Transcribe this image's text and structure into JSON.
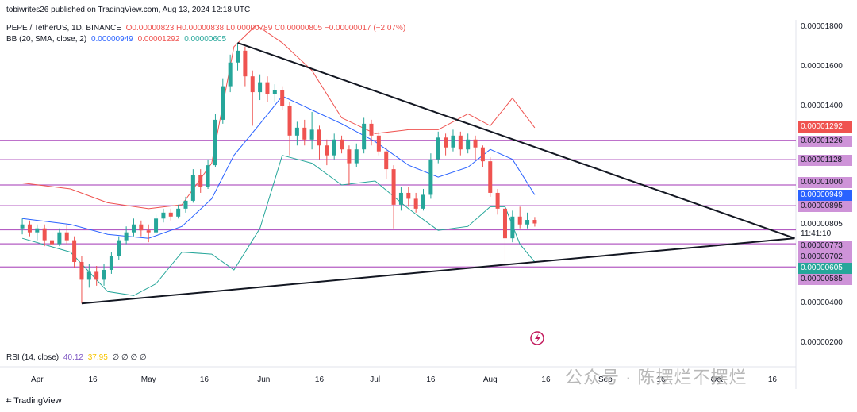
{
  "publisher_line": "tobiwrites26 published on TradingView.com, Aug 13, 2024 12:18 UTC",
  "symbol_line": {
    "symbol": "PEPE / TetherUS, 1D, BINANCE",
    "ohlc": "O0.00000823 H0.00000838 L0.00000789 C0.00000805 −0.00000017 (−2.07%)"
  },
  "bb_line": {
    "label": "BB (20, SMA, close, 2)",
    "basis": "0.00000949",
    "upper": "0.00001292",
    "lower": "0.00000605"
  },
  "rsi_line": {
    "label": "RSI (14, close)",
    "v1": "40.12",
    "v2": "37.95",
    "rest": "∅ ∅ ∅ ∅"
  },
  "footer": "TradingView",
  "watermark": "公众号 · 陈摆烂不摆烂",
  "colors": {
    "up": "#26a69a",
    "down": "#ef5350",
    "bb_upper": "#ef5350",
    "bb_basis": "#2962ff",
    "bb_lower": "#26a69a",
    "hline": "#9c27b0",
    "trendline": "#131722"
  },
  "chart_data": {
    "type": "candlestick",
    "title": "PEPE / TetherUS, 1D, BINANCE",
    "y_ticks": [
      "0.00001800",
      "0.00001600",
      "0.00001400",
      "0.00000400",
      "0.00000200"
    ],
    "x_ticks": [
      "Apr",
      "16",
      "May",
      "16",
      "Jun",
      "16",
      "Jul",
      "16",
      "Aug",
      "16",
      "Sep",
      "16",
      "Oct",
      "16"
    ],
    "price_labels": [
      {
        "text": "0.00001292",
        "value": 1.292e-05,
        "style": "red"
      },
      {
        "text": "0.00001226",
        "value": 1.226e-05,
        "style": "hline"
      },
      {
        "text": "0.00001128",
        "value": 1.128e-05,
        "style": "hline"
      },
      {
        "text": "0.00001000",
        "value": 1e-05,
        "style": "hline"
      },
      {
        "text": "0.00000949",
        "value": 9.49e-06,
        "style": "blue"
      },
      {
        "text": "0.00000895",
        "value": 8.95e-06,
        "style": "hline"
      },
      {
        "text": "0.00000805",
        "value": 8.05e-06,
        "style": "plain"
      },
      {
        "text": "11:41:10",
        "value": 7.85e-06,
        "style": "plain"
      },
      {
        "text": "0.00000773",
        "value": 7.73e-06,
        "style": "hline"
      },
      {
        "text": "0.00000702",
        "value": 7.02e-06,
        "style": "hline"
      },
      {
        "text": "0.00000605",
        "value": 6.05e-06,
        "style": "green"
      },
      {
        "text": "0.00000585",
        "value": 5.85e-06,
        "style": "hline"
      }
    ],
    "horizontal_levels": [
      1.226e-05,
      1.128e-05,
      1e-05,
      8.95e-06,
      7.73e-06,
      7.02e-06,
      5.85e-06
    ],
    "triangle": {
      "apex_date": "2024-05-25",
      "apex_price": 1.72e-05,
      "low_date": "2024-04-13",
      "low_price": 4e-06,
      "right_date": "2024-10-22",
      "right_price": 7.3e-06
    },
    "candles": [
      {
        "d": "2024-03-28",
        "o": 7.8e-06,
        "c": 8e-06,
        "h": 8.3e-06,
        "l": 7.5e-06
      },
      {
        "d": "2024-03-30",
        "o": 8e-06,
        "c": 7.6e-06,
        "h": 8.2e-06,
        "l": 7.4e-06
      },
      {
        "d": "2024-04-01",
        "o": 7.6e-06,
        "c": 7.8e-06,
        "h": 8e-06,
        "l": 7.2e-06
      },
      {
        "d": "2024-04-03",
        "o": 7.8e-06,
        "c": 7.2e-06,
        "h": 8e-06,
        "l": 6.9e-06
      },
      {
        "d": "2024-04-05",
        "o": 7.2e-06,
        "c": 7e-06,
        "h": 7.6e-06,
        "l": 6.8e-06
      },
      {
        "d": "2024-04-07",
        "o": 7e-06,
        "c": 7.6e-06,
        "h": 7.8e-06,
        "l": 6.9e-06
      },
      {
        "d": "2024-04-09",
        "o": 7.6e-06,
        "c": 7.2e-06,
        "h": 8e-06,
        "l": 7e-06
      },
      {
        "d": "2024-04-11",
        "o": 7.2e-06,
        "c": 6.1e-06,
        "h": 7.4e-06,
        "l": 5.8e-06
      },
      {
        "d": "2024-04-13",
        "o": 6.1e-06,
        "c": 5.2e-06,
        "h": 6.4e-06,
        "l": 4e-06
      },
      {
        "d": "2024-04-15",
        "o": 5.2e-06,
        "c": 5.6e-06,
        "h": 6e-06,
        "l": 4.8e-06
      },
      {
        "d": "2024-04-17",
        "o": 5.6e-06,
        "c": 5.2e-06,
        "h": 5.9e-06,
        "l": 4.9e-06
      },
      {
        "d": "2024-04-19",
        "o": 5.2e-06,
        "c": 5.7e-06,
        "h": 6e-06,
        "l": 4.9e-06
      },
      {
        "d": "2024-04-21",
        "o": 5.7e-06,
        "c": 6.4e-06,
        "h": 6.6e-06,
        "l": 5.5e-06
      },
      {
        "d": "2024-04-23",
        "o": 6.4e-06,
        "c": 7.2e-06,
        "h": 7.4e-06,
        "l": 6.2e-06
      },
      {
        "d": "2024-04-25",
        "o": 7.2e-06,
        "c": 7.6e-06,
        "h": 7.9e-06,
        "l": 7e-06
      },
      {
        "d": "2024-04-27",
        "o": 7.6e-06,
        "c": 8e-06,
        "h": 8.3e-06,
        "l": 7.4e-06
      },
      {
        "d": "2024-04-29",
        "o": 8e-06,
        "c": 7.7e-06,
        "h": 8.2e-06,
        "l": 7.4e-06
      },
      {
        "d": "2024-05-01",
        "o": 7.7e-06,
        "c": 7.6e-06,
        "h": 8e-06,
        "l": 7.1e-06
      },
      {
        "d": "2024-05-03",
        "o": 7.6e-06,
        "c": 8.3e-06,
        "h": 8.5e-06,
        "l": 7.5e-06
      },
      {
        "d": "2024-05-05",
        "o": 8.3e-06,
        "c": 8.6e-06,
        "h": 8.8e-06,
        "l": 8.1e-06
      },
      {
        "d": "2024-05-07",
        "o": 8.6e-06,
        "c": 8.4e-06,
        "h": 8.8e-06,
        "l": 8.2e-06
      },
      {
        "d": "2024-05-09",
        "o": 8.4e-06,
        "c": 8.8e-06,
        "h": 9e-06,
        "l": 8.3e-06
      },
      {
        "d": "2024-05-11",
        "o": 8.8e-06,
        "c": 9.2e-06,
        "h": 9.4e-06,
        "l": 8.6e-06
      },
      {
        "d": "2024-05-13",
        "o": 9.2e-06,
        "c": 1.05e-05,
        "h": 1.08e-05,
        "l": 9.1e-06
      },
      {
        "d": "2024-05-15",
        "o": 1.05e-05,
        "c": 9.9e-06,
        "h": 1.08e-05,
        "l": 9.6e-06
      },
      {
        "d": "2024-05-17",
        "o": 9.9e-06,
        "c": 1.1e-05,
        "h": 1.13e-05,
        "l": 9.8e-06
      },
      {
        "d": "2024-05-19",
        "o": 1.1e-05,
        "c": 1.33e-05,
        "h": 1.36e-05,
        "l": 1.09e-05
      },
      {
        "d": "2024-05-21",
        "o": 1.33e-05,
        "c": 1.5e-05,
        "h": 1.54e-05,
        "l": 1.31e-05
      },
      {
        "d": "2024-05-23",
        "o": 1.5e-05,
        "c": 1.62e-05,
        "h": 1.66e-05,
        "l": 1.47e-05
      },
      {
        "d": "2024-05-25",
        "o": 1.62e-05,
        "c": 1.68e-05,
        "h": 1.72e-05,
        "l": 1.58e-05
      },
      {
        "d": "2024-05-27",
        "o": 1.68e-05,
        "c": 1.55e-05,
        "h": 1.7e-05,
        "l": 1.5e-05
      },
      {
        "d": "2024-05-29",
        "o": 1.55e-05,
        "c": 1.47e-05,
        "h": 1.58e-05,
        "l": 1.3e-05
      },
      {
        "d": "2024-05-31",
        "o": 1.47e-05,
        "c": 1.52e-05,
        "h": 1.56e-05,
        "l": 1.43e-05
      },
      {
        "d": "2024-06-02",
        "o": 1.52e-05,
        "c": 1.46e-05,
        "h": 1.55e-05,
        "l": 1.42e-05
      },
      {
        "d": "2024-06-04",
        "o": 1.46e-05,
        "c": 1.48e-05,
        "h": 1.51e-05,
        "l": 1.42e-05
      },
      {
        "d": "2024-06-06",
        "o": 1.48e-05,
        "c": 1.4e-05,
        "h": 1.5e-05,
        "l": 1.38e-05
      },
      {
        "d": "2024-06-08",
        "o": 1.4e-05,
        "c": 1.25e-05,
        "h": 1.42e-05,
        "l": 1.15e-05
      },
      {
        "d": "2024-06-10",
        "o": 1.25e-05,
        "c": 1.29e-05,
        "h": 1.32e-05,
        "l": 1.2e-05
      },
      {
        "d": "2024-06-12",
        "o": 1.29e-05,
        "c": 1.23e-05,
        "h": 1.33e-05,
        "l": 1.2e-05
      },
      {
        "d": "2024-06-14",
        "o": 1.23e-05,
        "c": 1.28e-05,
        "h": 1.37e-05,
        "l": 1.18e-05
      },
      {
        "d": "2024-06-16",
        "o": 1.28e-05,
        "c": 1.2e-05,
        "h": 1.3e-05,
        "l": 1.13e-05
      },
      {
        "d": "2024-06-18",
        "o": 1.2e-05,
        "c": 1.15e-05,
        "h": 1.23e-05,
        "l": 1.1e-05
      },
      {
        "d": "2024-06-20",
        "o": 1.15e-05,
        "c": 1.23e-05,
        "h": 1.26e-05,
        "l": 1.13e-05
      },
      {
        "d": "2024-06-22",
        "o": 1.23e-05,
        "c": 1.18e-05,
        "h": 1.25e-05,
        "l": 1.16e-05
      },
      {
        "d": "2024-06-24",
        "o": 1.18e-05,
        "c": 1.11e-05,
        "h": 1.2e-05,
        "l": 1e-05
      },
      {
        "d": "2024-06-26",
        "o": 1.11e-05,
        "c": 1.18e-05,
        "h": 1.21e-05,
        "l": 1.09e-05
      },
      {
        "d": "2024-06-28",
        "o": 1.18e-05,
        "c": 1.31e-05,
        "h": 1.34e-05,
        "l": 1.16e-05
      },
      {
        "d": "2024-06-30",
        "o": 1.31e-05,
        "c": 1.25e-05,
        "h": 1.33e-05,
        "l": 1.2e-05
      },
      {
        "d": "2024-07-02",
        "o": 1.25e-05,
        "c": 1.17e-05,
        "h": 1.27e-05,
        "l": 1.15e-05
      },
      {
        "d": "2024-07-04",
        "o": 1.17e-05,
        "c": 1.08e-05,
        "h": 1.19e-05,
        "l": 1.03e-05
      },
      {
        "d": "2024-07-06",
        "o": 1.08e-05,
        "c": 9e-06,
        "h": 1.1e-05,
        "l": 7.8e-06
      },
      {
        "d": "2024-07-08",
        "o": 9e-06,
        "c": 9.6e-06,
        "h": 9.9e-06,
        "l": 8.7e-06
      },
      {
        "d": "2024-07-10",
        "o": 9.6e-06,
        "c": 9.3e-06,
        "h": 9.9e-06,
        "l": 8.9e-06
      },
      {
        "d": "2024-07-12",
        "o": 9.3e-06,
        "c": 8.8e-06,
        "h": 9.6e-06,
        "l": 8.6e-06
      },
      {
        "d": "2024-07-14",
        "o": 8.8e-06,
        "c": 9.5e-06,
        "h": 9.8e-06,
        "l": 8.7e-06
      },
      {
        "d": "2024-07-16",
        "o": 9.5e-06,
        "c": 1.13e-05,
        "h": 1.16e-05,
        "l": 9.3e-06
      },
      {
        "d": "2024-07-18",
        "o": 1.13e-05,
        "c": 1.24e-05,
        "h": 1.27e-05,
        "l": 1.11e-05
      },
      {
        "d": "2024-07-20",
        "o": 1.24e-05,
        "c": 1.19e-05,
        "h": 1.26e-05,
        "l": 1.15e-05
      },
      {
        "d": "2024-07-22",
        "o": 1.19e-05,
        "c": 1.25e-05,
        "h": 1.28e-05,
        "l": 1.17e-05
      },
      {
        "d": "2024-07-24",
        "o": 1.25e-05,
        "c": 1.18e-05,
        "h": 1.27e-05,
        "l": 1.15e-05
      },
      {
        "d": "2024-07-26",
        "o": 1.18e-05,
        "c": 1.23e-05,
        "h": 1.26e-05,
        "l": 1.16e-05
      },
      {
        "d": "2024-07-28",
        "o": 1.23e-05,
        "c": 1.19e-05,
        "h": 1.25e-05,
        "l": 1.13e-05
      },
      {
        "d": "2024-07-30",
        "o": 1.19e-05,
        "c": 1.12e-05,
        "h": 1.2e-05,
        "l": 1.09e-05
      },
      {
        "d": "2024-08-01",
        "o": 1.12e-05,
        "c": 9.6e-06,
        "h": 1.14e-05,
        "l": 9.4e-06
      },
      {
        "d": "2024-08-03",
        "o": 9.6e-06,
        "c": 8.8e-06,
        "h": 9.8e-06,
        "l": 8.5e-06
      },
      {
        "d": "2024-08-05",
        "o": 8.8e-06,
        "c": 7.3e-06,
        "h": 9e-06,
        "l": 6e-06
      },
      {
        "d": "2024-08-07",
        "o": 7.3e-06,
        "c": 8.4e-06,
        "h": 8.7e-06,
        "l": 7.1e-06
      },
      {
        "d": "2024-08-09",
        "o": 8.4e-06,
        "c": 8e-06,
        "h": 8.9e-06,
        "l": 7.8e-06
      },
      {
        "d": "2024-08-11",
        "o": 8e-06,
        "c": 8.23e-06,
        "h": 8.6e-06,
        "l": 7.8e-06
      },
      {
        "d": "2024-08-13",
        "o": 8.23e-06,
        "c": 8.05e-06,
        "h": 8.38e-06,
        "l": 7.89e-06
      }
    ],
    "bollinger": {
      "upper": [
        [
          "2024-03-28",
          1.01e-05
        ],
        [
          "2024-04-10",
          9.8e-06
        ],
        [
          "2024-04-20",
          9.1e-06
        ],
        [
          "2024-05-01",
          8.8e-06
        ],
        [
          "2024-05-10",
          9e-06
        ],
        [
          "2024-05-18",
          1.11e-05
        ],
        [
          "2024-05-24",
          1.7e-05
        ],
        [
          "2024-05-30",
          1.81e-05
        ],
        [
          "2024-06-06",
          1.72e-05
        ],
        [
          "2024-06-14",
          1.58e-05
        ],
        [
          "2024-06-22",
          1.34e-05
        ],
        [
          "2024-07-01",
          1.26e-05
        ],
        [
          "2024-07-10",
          1.28e-05
        ],
        [
          "2024-07-18",
          1.28e-05
        ],
        [
          "2024-07-26",
          1.36e-05
        ],
        [
          "2024-08-01",
          1.3e-05
        ],
        [
          "2024-08-07",
          1.44e-05
        ],
        [
          "2024-08-13",
          1.29e-05
        ]
      ],
      "basis": [
        [
          "2024-03-28",
          8.3e-06
        ],
        [
          "2024-04-10",
          8e-06
        ],
        [
          "2024-04-20",
          7.5e-06
        ],
        [
          "2024-05-01",
          7.3e-06
        ],
        [
          "2024-05-10",
          7.9e-06
        ],
        [
          "2024-05-18",
          9.3e-06
        ],
        [
          "2024-05-24",
          1.15e-05
        ],
        [
          "2024-05-31",
          1.31e-05
        ],
        [
          "2024-06-06",
          1.45e-05
        ],
        [
          "2024-06-14",
          1.38e-05
        ],
        [
          "2024-06-22",
          1.31e-05
        ],
        [
          "2024-07-01",
          1.22e-05
        ],
        [
          "2024-07-10",
          1.1e-05
        ],
        [
          "2024-07-18",
          1.04e-05
        ],
        [
          "2024-07-26",
          1.09e-05
        ],
        [
          "2024-08-01",
          1.18e-05
        ],
        [
          "2024-08-07",
          1.13e-05
        ],
        [
          "2024-08-13",
          9.5e-06
        ]
      ],
      "lower": [
        [
          "2024-03-28",
          7.3e-06
        ],
        [
          "2024-04-10",
          6.6e-06
        ],
        [
          "2024-04-20",
          4.6e-06
        ],
        [
          "2024-04-27",
          4.4e-06
        ],
        [
          "2024-05-03",
          5e-06
        ],
        [
          "2024-05-10",
          6.6e-06
        ],
        [
          "2024-05-18",
          6.5e-06
        ],
        [
          "2024-05-24",
          5.7e-06
        ],
        [
          "2024-05-31",
          7.8e-06
        ],
        [
          "2024-06-06",
          1.15e-05
        ],
        [
          "2024-06-14",
          1.11e-05
        ],
        [
          "2024-06-22",
          1e-05
        ],
        [
          "2024-07-01",
          1.02e-05
        ],
        [
          "2024-07-10",
          8.8e-06
        ],
        [
          "2024-07-18",
          7.7e-06
        ],
        [
          "2024-07-26",
          7.9e-06
        ],
        [
          "2024-08-01",
          8.9e-06
        ],
        [
          "2024-08-05",
          8.9e-06
        ],
        [
          "2024-08-09",
          7e-06
        ],
        [
          "2024-08-13",
          6.1e-06
        ]
      ]
    }
  }
}
